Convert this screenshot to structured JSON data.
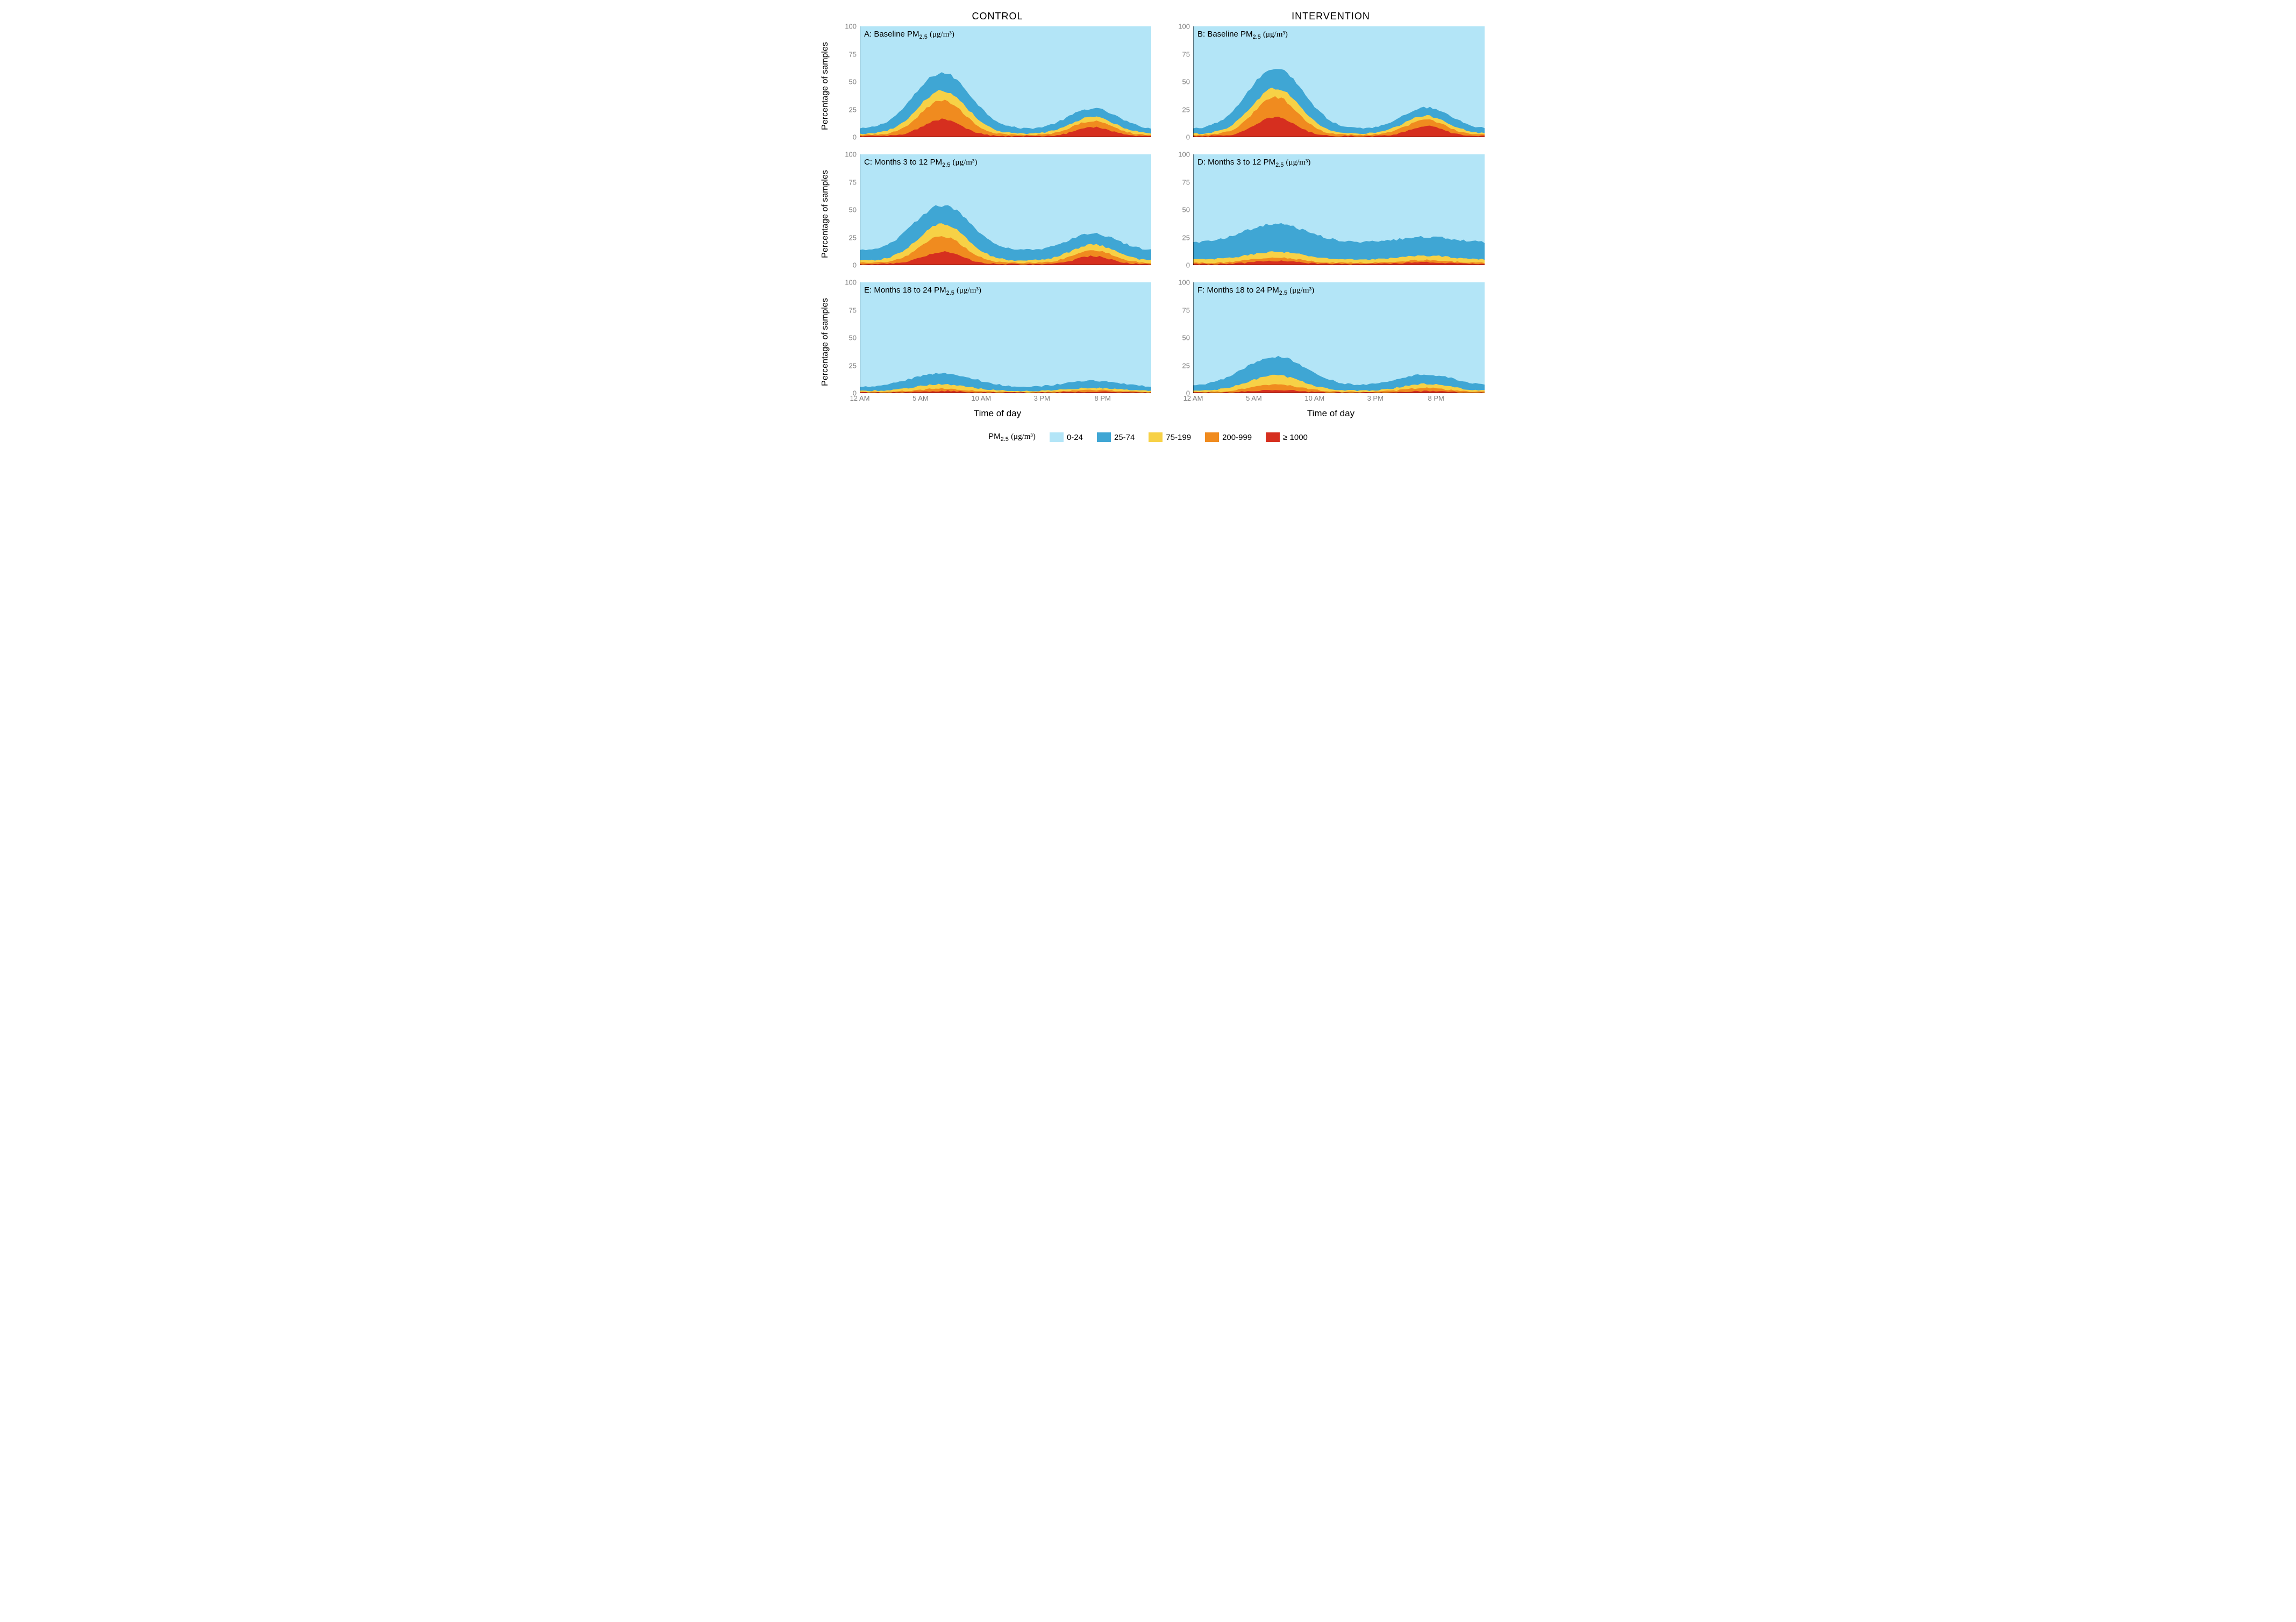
{
  "figure": {
    "columns": [
      "CONTROL",
      "INTERVENTION"
    ],
    "ylabel": "Percentage of samples",
    "xlabel": "Time of day",
    "yticks": [
      0,
      25,
      50,
      75,
      100
    ],
    "ylim": [
      0,
      100
    ],
    "xticks": [
      {
        "hour": 0,
        "label": "12 AM"
      },
      {
        "hour": 5,
        "label": "5 AM"
      },
      {
        "hour": 10,
        "label": "10 AM"
      },
      {
        "hour": 15,
        "label": "3 PM"
      },
      {
        "hour": 20,
        "label": "8 PM"
      }
    ],
    "xlim": [
      0,
      24
    ],
    "n_segments": 96,
    "noise_amp": 1.5,
    "background_color": "#ffffff",
    "tick_color": "#808080",
    "axis_line_color": "#000000",
    "label_fontsize": 16,
    "tick_fontsize": 13,
    "title_fontsize": 15
  },
  "legend": {
    "title_prefix": "PM",
    "title_sub": "2.5",
    "title_units": "(μg/m³)",
    "items": [
      {
        "label": "0-24",
        "color": "#b3e5f7"
      },
      {
        "label": "25-74",
        "color": "#3fa6d4"
      },
      {
        "label": "75-199",
        "color": "#f7d146"
      },
      {
        "label": "200-999",
        "color": "#f08b1f"
      },
      {
        "label": "≥ 1000",
        "color": "#d62f1f"
      }
    ]
  },
  "panels": [
    {
      "id": "A",
      "title": "A: Baseline PM",
      "sub": "2.5",
      "units": "(μg/m³)",
      "col": 0,
      "row": 0,
      "envelopes": {
        "red": {
          "base": 1,
          "morning_peak": 16,
          "morning_ctr": 6.8,
          "morning_w": 1.6,
          "evening_peak": 10,
          "evening_ctr": 19.2,
          "evening_w": 1.4
        },
        "orange": {
          "base": 2,
          "morning_peak": 33,
          "morning_ctr": 6.8,
          "morning_w": 1.8,
          "evening_peak": 16,
          "evening_ctr": 19.2,
          "evening_w": 1.6
        },
        "yellow": {
          "base": 3,
          "morning_peak": 42,
          "morning_ctr": 6.8,
          "morning_w": 2.0,
          "evening_peak": 20,
          "evening_ctr": 19.2,
          "evening_w": 1.8
        },
        "blue": {
          "base": 7,
          "morning_peak": 58,
          "morning_ctr": 6.8,
          "morning_w": 2.3,
          "evening_peak": 28,
          "evening_ctr": 19.2,
          "evening_w": 2.0
        }
      }
    },
    {
      "id": "B",
      "title": "B: Baseline PM",
      "sub": "2.5",
      "units": "(μg/m³)",
      "col": 1,
      "row": 0,
      "envelopes": {
        "red": {
          "base": 1,
          "morning_peak": 18,
          "morning_ctr": 6.8,
          "morning_w": 1.6,
          "evening_peak": 11,
          "evening_ctr": 19.2,
          "evening_w": 1.4
        },
        "orange": {
          "base": 2,
          "morning_peak": 36,
          "morning_ctr": 6.8,
          "morning_w": 1.8,
          "evening_peak": 17,
          "evening_ctr": 19.2,
          "evening_w": 1.6
        },
        "yellow": {
          "base": 3,
          "morning_peak": 44,
          "morning_ctr": 6.8,
          "morning_w": 2.0,
          "evening_peak": 21,
          "evening_ctr": 19.2,
          "evening_w": 1.8
        },
        "blue": {
          "base": 7,
          "morning_peak": 62,
          "morning_ctr": 6.8,
          "morning_w": 2.3,
          "evening_peak": 29,
          "evening_ctr": 19.2,
          "evening_w": 2.0
        }
      }
    },
    {
      "id": "C",
      "title": "C: Months 3 to 12 PM",
      "sub": "2.5",
      "units": "(μg/m³)",
      "col": 0,
      "row": 1,
      "envelopes": {
        "red": {
          "base": 1,
          "morning_peak": 12,
          "morning_ctr": 6.8,
          "morning_w": 1.6,
          "evening_peak": 9,
          "evening_ctr": 19.2,
          "evening_w": 1.4
        },
        "orange": {
          "base": 2,
          "morning_peak": 26,
          "morning_ctr": 6.8,
          "morning_w": 1.8,
          "evening_peak": 15,
          "evening_ctr": 19.2,
          "evening_w": 1.6
        },
        "yellow": {
          "base": 4,
          "morning_peak": 37,
          "morning_ctr": 6.8,
          "morning_w": 2.0,
          "evening_peak": 20,
          "evening_ctr": 19.2,
          "evening_w": 1.8
        },
        "blue": {
          "base": 13,
          "morning_peak": 54,
          "morning_ctr": 6.8,
          "morning_w": 2.3,
          "evening_peak": 30,
          "evening_ctr": 19.2,
          "evening_w": 2.0
        }
      }
    },
    {
      "id": "D",
      "title": "D: Months 3 to 12 PM",
      "sub": "2.5",
      "units": "(μg/m³)",
      "col": 1,
      "row": 1,
      "envelopes": {
        "red": {
          "base": 1,
          "morning_peak": 4,
          "morning_ctr": 6.8,
          "morning_w": 1.8,
          "evening_peak": 3,
          "evening_ctr": 19.2,
          "evening_w": 1.6
        },
        "orange": {
          "base": 2,
          "morning_peak": 7,
          "morning_ctr": 6.8,
          "morning_w": 2.0,
          "evening_peak": 5,
          "evening_ctr": 19.2,
          "evening_w": 1.8
        },
        "yellow": {
          "base": 5,
          "morning_peak": 12,
          "morning_ctr": 6.8,
          "morning_w": 2.2,
          "evening_peak": 9,
          "evening_ctr": 19.2,
          "evening_w": 2.0
        },
        "blue": {
          "base": 20,
          "morning_peak": 37,
          "morning_ctr": 6.8,
          "morning_w": 2.6,
          "evening_peak": 26,
          "evening_ctr": 19.2,
          "evening_w": 2.4
        }
      }
    },
    {
      "id": "E",
      "title": "E: Months 18 to 24 PM",
      "sub": "2.5",
      "units": "(μg/m³)",
      "col": 0,
      "row": 2,
      "envelopes": {
        "red": {
          "base": 0.5,
          "morning_peak": 2,
          "morning_ctr": 6.8,
          "morning_w": 1.8,
          "evening_peak": 1.5,
          "evening_ctr": 19.2,
          "evening_w": 1.6
        },
        "orange": {
          "base": 1,
          "morning_peak": 4,
          "morning_ctr": 6.8,
          "morning_w": 2.0,
          "evening_peak": 3,
          "evening_ctr": 19.2,
          "evening_w": 1.8
        },
        "yellow": {
          "base": 2,
          "morning_peak": 8,
          "morning_ctr": 6.8,
          "morning_w": 2.2,
          "evening_peak": 5,
          "evening_ctr": 19.2,
          "evening_w": 2.0
        },
        "blue": {
          "base": 5,
          "morning_peak": 18,
          "morning_ctr": 6.8,
          "morning_w": 2.6,
          "evening_peak": 12,
          "evening_ctr": 19.2,
          "evening_w": 2.4
        }
      }
    },
    {
      "id": "F",
      "title": "F: Months 18 to 24 PM",
      "sub": "2.5",
      "units": "(μg/m³)",
      "col": 1,
      "row": 2,
      "envelopes": {
        "red": {
          "base": 0.5,
          "morning_peak": 3,
          "morning_ctr": 6.8,
          "morning_w": 1.8,
          "evening_peak": 2,
          "evening_ctr": 19.2,
          "evening_w": 1.6
        },
        "orange": {
          "base": 1,
          "morning_peak": 8,
          "morning_ctr": 6.8,
          "morning_w": 2.0,
          "evening_peak": 5,
          "evening_ctr": 19.2,
          "evening_w": 1.8
        },
        "yellow": {
          "base": 2,
          "morning_peak": 16,
          "morning_ctr": 6.8,
          "morning_w": 2.2,
          "evening_peak": 9,
          "evening_ctr": 19.2,
          "evening_w": 2.0
        },
        "blue": {
          "base": 6,
          "morning_peak": 33,
          "morning_ctr": 6.8,
          "morning_w": 2.6,
          "evening_peak": 18,
          "evening_ctr": 19.2,
          "evening_w": 2.4
        }
      }
    }
  ]
}
